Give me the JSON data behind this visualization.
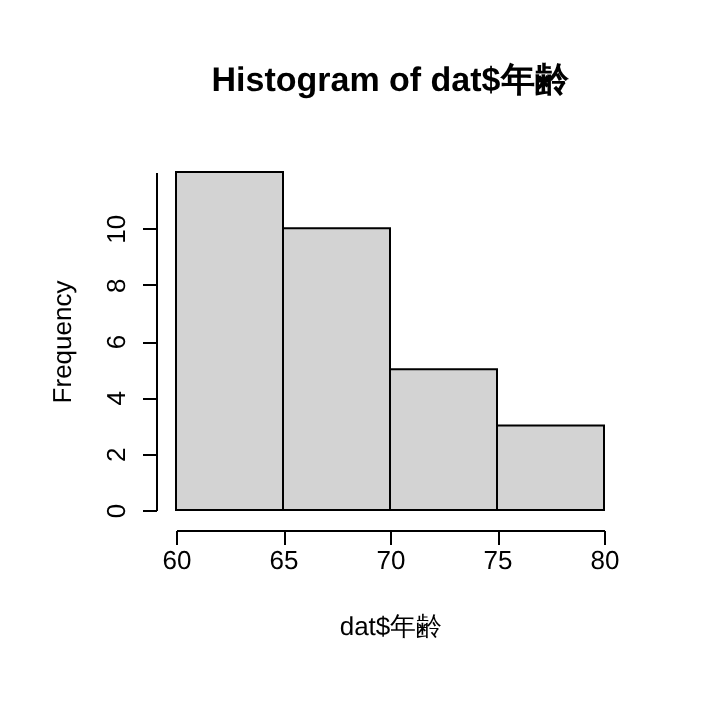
{
  "chart_data": {
    "type": "histogram",
    "title": "Histogram of dat$年齢",
    "xlabel": "dat$年齢",
    "ylabel": "Frequency",
    "bins": [
      60,
      65,
      70,
      75,
      80
    ],
    "values": [
      12,
      10,
      5,
      3
    ],
    "color": "#d3d3d3",
    "xlim": [
      60,
      80
    ],
    "xticks": [
      60,
      65,
      70,
      75,
      80
    ],
    "ylim": [
      0,
      12
    ],
    "yticks": [
      0,
      2,
      4,
      6,
      8,
      10
    ],
    "grid": false
  }
}
